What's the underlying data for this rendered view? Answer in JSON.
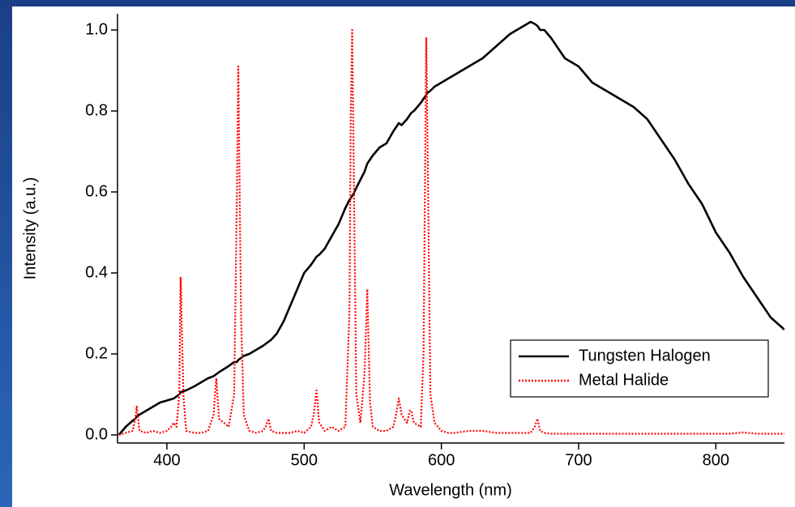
{
  "chart_data": {
    "type": "line",
    "x_label": "Wavelength (nm)",
    "y_label": "Intensity (a.u.)",
    "x": [
      365,
      370,
      375,
      377,
      378,
      380,
      385,
      390,
      395,
      400,
      403,
      405,
      407,
      409,
      410,
      412,
      414,
      420,
      425,
      430,
      434,
      436,
      438,
      445,
      449,
      451,
      452,
      454,
      456,
      460,
      465,
      470,
      472,
      474,
      476,
      480,
      485,
      490,
      495,
      500,
      505,
      507,
      509,
      511,
      515,
      520,
      525,
      530,
      533,
      534,
      535,
      536,
      538,
      541,
      544,
      546,
      548,
      550,
      555,
      560,
      565,
      567,
      569,
      571,
      575,
      577,
      578,
      580,
      585,
      587,
      588,
      589,
      590,
      592,
      595,
      600,
      605,
      610,
      620,
      630,
      640,
      650,
      660,
      665,
      668,
      670,
      672,
      675,
      680,
      690,
      700,
      710,
      720,
      730,
      740,
      750,
      760,
      770,
      780,
      790,
      800,
      810,
      820,
      830,
      840,
      850
    ],
    "series": [
      {
        "name": "Tungsten Halogen",
        "color": "#000000",
        "dash": "solid",
        "values": [
          0.0,
          0.02,
          0.035,
          0.04,
          0.045,
          0.05,
          0.06,
          0.07,
          0.08,
          0.085,
          0.088,
          0.09,
          0.095,
          0.1,
          0.105,
          0.108,
          0.11,
          0.12,
          0.13,
          0.14,
          0.145,
          0.15,
          0.155,
          0.17,
          0.18,
          0.18,
          0.185,
          0.19,
          0.195,
          0.2,
          0.21,
          0.22,
          0.225,
          0.23,
          0.235,
          0.25,
          0.28,
          0.32,
          0.36,
          0.4,
          0.42,
          0.43,
          0.44,
          0.445,
          0.46,
          0.49,
          0.52,
          0.56,
          0.58,
          0.585,
          0.59,
          0.595,
          0.61,
          0.63,
          0.65,
          0.67,
          0.68,
          0.69,
          0.71,
          0.72,
          0.75,
          0.76,
          0.77,
          0.765,
          0.78,
          0.79,
          0.795,
          0.8,
          0.82,
          0.83,
          0.835,
          0.84,
          0.845,
          0.85,
          0.86,
          0.87,
          0.88,
          0.89,
          0.91,
          0.93,
          0.96,
          0.99,
          1.01,
          1.02,
          1.015,
          1.01,
          1.0,
          1.0,
          0.98,
          0.93,
          0.91,
          0.87,
          0.85,
          0.83,
          0.81,
          0.78,
          0.73,
          0.68,
          0.62,
          0.57,
          0.5,
          0.45,
          0.39,
          0.34,
          0.29,
          0.26
        ]
      },
      {
        "name": "Metal Halide",
        "color": "#ff0000",
        "dash": "dotted",
        "values": [
          0.0,
          0.005,
          0.01,
          0.04,
          0.07,
          0.01,
          0.005,
          0.01,
          0.005,
          0.01,
          0.02,
          0.03,
          0.02,
          0.1,
          0.39,
          0.1,
          0.01,
          0.005,
          0.005,
          0.01,
          0.05,
          0.14,
          0.04,
          0.02,
          0.1,
          0.6,
          0.91,
          0.3,
          0.05,
          0.01,
          0.005,
          0.01,
          0.02,
          0.04,
          0.01,
          0.005,
          0.005,
          0.005,
          0.01,
          0.005,
          0.02,
          0.05,
          0.11,
          0.03,
          0.01,
          0.02,
          0.01,
          0.02,
          0.3,
          0.8,
          1.0,
          0.7,
          0.1,
          0.03,
          0.15,
          0.36,
          0.08,
          0.02,
          0.01,
          0.01,
          0.02,
          0.05,
          0.09,
          0.05,
          0.03,
          0.06,
          0.06,
          0.03,
          0.02,
          0.2,
          0.6,
          0.98,
          0.7,
          0.1,
          0.03,
          0.01,
          0.005,
          0.005,
          0.01,
          0.01,
          0.005,
          0.005,
          0.005,
          0.005,
          0.02,
          0.04,
          0.01,
          0.005,
          0.003,
          0.003,
          0.003,
          0.003,
          0.003,
          0.003,
          0.003,
          0.003,
          0.003,
          0.003,
          0.003,
          0.003,
          0.003,
          0.003,
          0.006,
          0.003,
          0.003,
          0.003
        ]
      }
    ],
    "xlim": [
      364,
      850
    ],
    "xticks": [
      400,
      500,
      600,
      700,
      800
    ],
    "ylim": [
      -0.02,
      1.04
    ],
    "yticks": [
      {
        "value": 0,
        "label": "0.0"
      },
      0.2,
      0.4,
      0.6,
      0.8,
      {
        "value": 1,
        "label": "1.0"
      }
    ],
    "grid": false,
    "legend": "lower right"
  }
}
